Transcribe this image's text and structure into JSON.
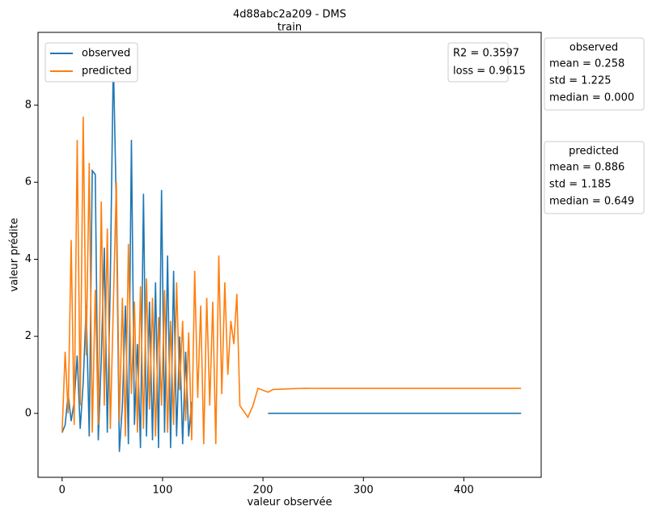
{
  "chart_data": {
    "type": "line",
    "title": "4d88abc2a209 - DMS",
    "subtitle": "train",
    "x_label": "valeur observée",
    "y_label": "valeur prédite",
    "x": [
      0,
      3,
      6,
      9,
      12,
      15,
      18,
      21,
      24,
      27,
      30,
      33,
      36,
      39,
      42,
      45,
      48,
      51,
      54,
      57,
      60,
      63,
      66,
      69,
      72,
      75,
      78,
      81,
      84,
      87,
      90,
      93,
      96,
      99,
      102,
      105,
      108,
      111,
      114,
      117,
      120,
      123,
      126,
      129,
      132,
      135,
      138,
      141,
      144,
      147,
      150,
      153,
      156,
      159,
      162,
      165,
      168,
      171,
      174,
      177,
      185,
      190,
      195,
      200,
      205,
      210,
      220,
      230,
      240,
      260,
      300,
      350,
      400,
      457
    ],
    "series": [
      {
        "name": "observed",
        "color": "#1f77b4",
        "values": [
          -0.5,
          -0.3,
          0.5,
          -0.2,
          0.3,
          1.5,
          -0.4,
          0.8,
          2.8,
          -0.6,
          6.3,
          6.2,
          -0.7,
          1.4,
          4.3,
          -0.5,
          3.5,
          9.2,
          5.3,
          -1.0,
          0.2,
          2.8,
          -0.8,
          7.1,
          -0.3,
          1.8,
          -0.9,
          5.7,
          -0.6,
          2.9,
          -0.7,
          3.4,
          -0.9,
          5.8,
          -0.5,
          4.1,
          -0.9,
          3.7,
          -0.6,
          2.0,
          -0.8,
          1.6,
          -0.6,
          0.3,
          null,
          null,
          null,
          null,
          null,
          null,
          null,
          null,
          null,
          null,
          null,
          null,
          null,
          null,
          null,
          null,
          null,
          null,
          null,
          null,
          0,
          0,
          0,
          0,
          0,
          0,
          0,
          0,
          0,
          0
        ]
      },
      {
        "name": "predicted",
        "color": "#ff7f0e",
        "values": [
          -0.5,
          1.6,
          0.0,
          4.5,
          -0.3,
          7.1,
          0.2,
          7.7,
          1.5,
          6.5,
          -0.5,
          3.2,
          -0.3,
          5.5,
          0.2,
          4.8,
          -0.4,
          2.8,
          6.0,
          -0.2,
          3.0,
          -0.6,
          4.4,
          0.5,
          2.9,
          -0.5,
          3.3,
          -0.4,
          3.5,
          0.1,
          3.0,
          -0.6,
          2.5,
          0.2,
          3.2,
          -0.5,
          2.4,
          -0.3,
          3.4,
          0.6,
          2.4,
          -0.2,
          2.1,
          -0.7,
          3.7,
          0.4,
          2.8,
          -0.8,
          3.0,
          0.2,
          2.9,
          -0.8,
          4.1,
          0.5,
          3.4,
          1.0,
          2.4,
          1.8,
          3.1,
          0.2,
          -0.1,
          0.2,
          0.65,
          0.6,
          0.55,
          0.62,
          0.63,
          0.64,
          0.65,
          0.649,
          0.649,
          0.649,
          0.649,
          0.649
        ]
      }
    ],
    "xlim": [
      -24,
      477
    ],
    "ylim": [
      -1.66,
      9.89
    ],
    "xticks": [
      0,
      100,
      200,
      300,
      400
    ],
    "yticks": [
      0,
      2,
      4,
      6,
      8
    ],
    "legend": "upper left",
    "metrics": [
      "R2 = 0.3597",
      "loss = 0.9615"
    ],
    "stats": [
      {
        "title": "observed",
        "lines": [
          "mean = 0.258",
          "std = 1.225",
          "median = 0.000"
        ]
      },
      {
        "title": "predicted",
        "lines": [
          "mean = 0.886",
          "std = 1.185",
          "median = 0.649"
        ]
      }
    ]
  }
}
